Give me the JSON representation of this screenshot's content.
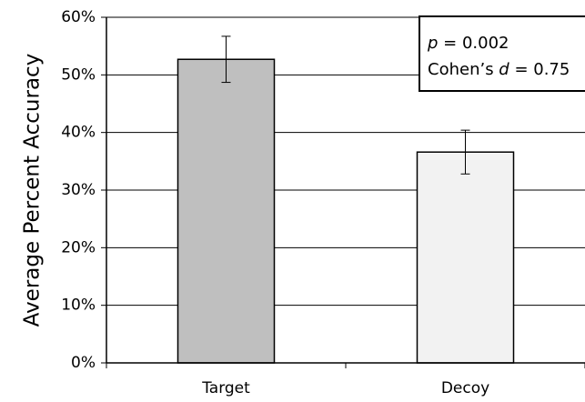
{
  "chart_data": {
    "type": "bar",
    "categories": [
      "Target",
      "Decoy"
    ],
    "values": [
      0.527,
      0.366
    ],
    "errors": [
      0.04,
      0.038
    ],
    "bar_colors": [
      "#bfbfbf",
      "#f2f2f2"
    ],
    "ylabel": "Average Percent Accuracy",
    "xlabel": "",
    "title": "",
    "ylim": [
      0,
      0.6
    ],
    "yticks": [
      {
        "value": 0,
        "label": "0%"
      },
      {
        "value": 0.1,
        "label": "10%"
      },
      {
        "value": 0.2,
        "label": "20%"
      },
      {
        "value": 0.3,
        "label": "30%"
      },
      {
        "value": 0.4,
        "label": "40%"
      },
      {
        "value": 0.5,
        "label": "50%"
      },
      {
        "value": 0.6,
        "label": "60%"
      }
    ],
    "grid": true,
    "annotation": {
      "line1_var": "p",
      "line1_rest": " = 0.002",
      "line2_pre": "Cohen’s ",
      "line2_var": "d",
      "line2_rest": " = 0.75"
    }
  }
}
